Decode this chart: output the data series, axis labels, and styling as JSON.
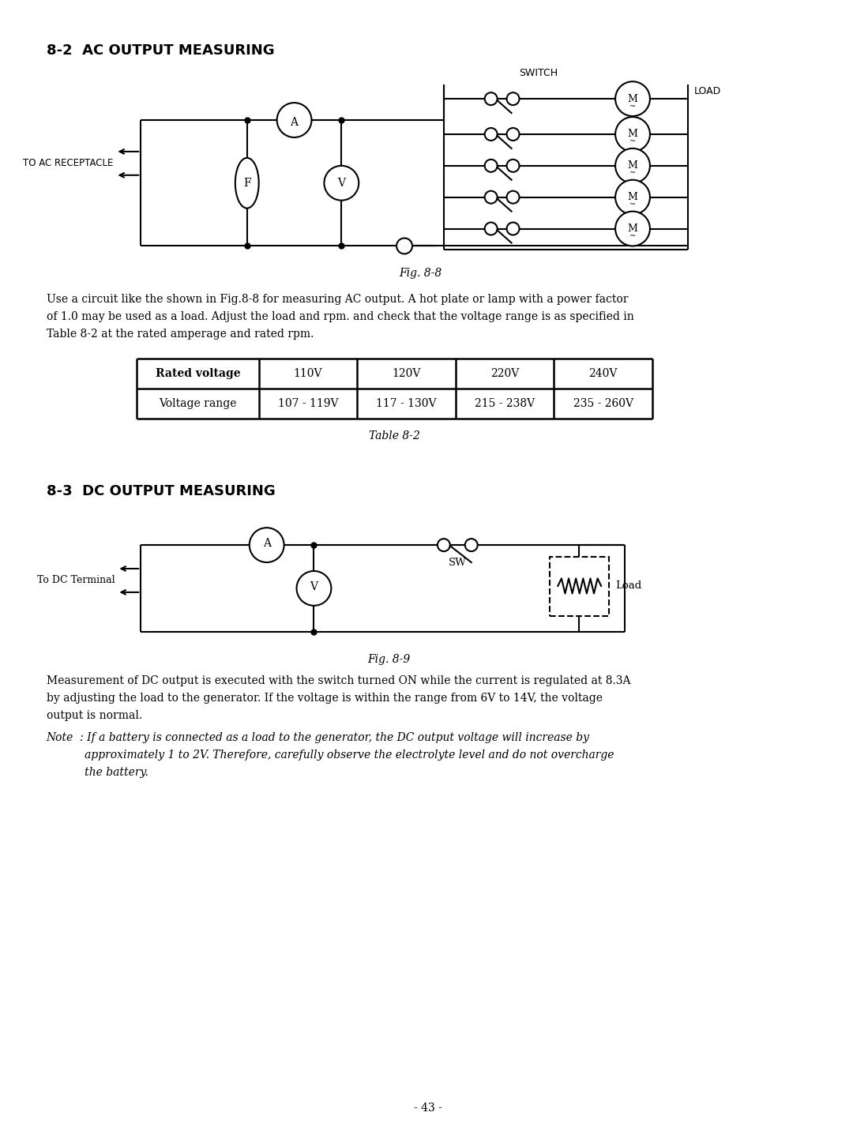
{
  "title_82": "8-2  AC OUTPUT MEASURING",
  "title_83": "8-3  DC OUTPUT MEASURING",
  "fig88_caption": "Fig. 8-8",
  "fig89_caption": "Fig. 8-9",
  "table_caption": "Table 8-2",
  "para1_line1": "Use a circuit like the shown in Fig.8-8 for measuring AC output. A hot plate or lamp with a power factor",
  "para1_line2": "of 1.0 may be used as a load. Adjust the load and rpm. and check that the voltage range is as specified in",
  "para1_line3": "Table 8-2 at the rated amperage and rated rpm.",
  "para2_line1": "Measurement of DC output is executed with the switch turned ON while the current is regulated at 8.3A",
  "para2_line2": "by adjusting the load to the generator. If the voltage is within the range from 6V to 14V, the voltage",
  "para2_line3": "output is normal.",
  "note_line1": "Note  : If a battery is connected as a load to the generator, the DC output voltage will increase by",
  "note_line2": "           approximately 1 to 2V. Therefore, carefully observe the electrolyte level and do not overcharge",
  "note_line3": "           the battery.",
  "page_num": "- 43 -",
  "table_headers": [
    "Rated voltage",
    "110V",
    "120V",
    "220V",
    "240V"
  ],
  "table_row": [
    "Voltage range",
    "107 - 119V",
    "117 - 130V",
    "215 - 238V",
    "235 - 260V"
  ],
  "bg_color": "#ffffff",
  "line_color": "#000000",
  "text_color": "#000000"
}
